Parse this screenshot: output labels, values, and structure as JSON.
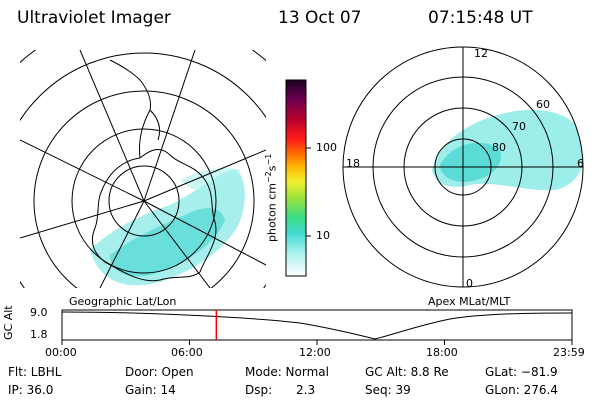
{
  "header": {
    "instrument": "Ultraviolet Imager",
    "date": "13 Oct 07",
    "time": "07:15:48 UT"
  },
  "maps": {
    "geo_label": "Geographic Lat/Lon",
    "apex_label": "Apex  MLat/MLT",
    "mlt_labels": [
      "12",
      "18",
      "6",
      "0"
    ],
    "mlat_labels": [
      "60",
      "70",
      "80"
    ]
  },
  "colorbar": {
    "unit_label": "photon cm",
    "ticks": [
      "100",
      "10"
    ]
  },
  "timeline": {
    "ylabel": "GC Alt",
    "y_ticks": [
      "9.0",
      "1.8"
    ],
    "x_ticks": [
      "00:00",
      "06:00",
      "12:00",
      "18:00",
      "23:59"
    ],
    "current_time_fraction": 0.3026
  },
  "status": {
    "filter": "Flt: LBHL",
    "ip": "IP: 36.0",
    "door": "Door: Open",
    "gain": "Gain: 14",
    "mode": "Mode: Normal",
    "dsp_label": "Dsp:",
    "dsp_value": "2.3",
    "gc_alt": "GC Alt: 8.8 Re",
    "seq": "Seq: 39",
    "glat": "GLat: −81.9",
    "glon": "GLon: 276.4"
  },
  "colors": {
    "aurora": "#5ce1dc",
    "marker": "#ff0000"
  }
}
